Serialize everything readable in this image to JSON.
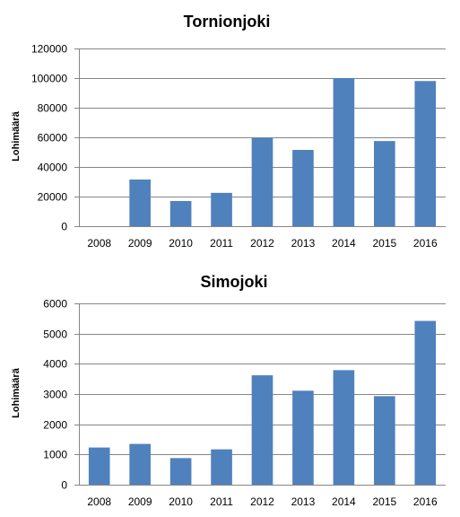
{
  "colors": {
    "bar": "#4f81bd",
    "grid": "#868686"
  },
  "chart_data": [
    {
      "type": "bar",
      "title": "Tornionjoki",
      "xlabel": "",
      "ylabel": "Lohimäärä",
      "categories": [
        "2008",
        "2009",
        "2010",
        "2011",
        "2012",
        "2013",
        "2014",
        "2015",
        "2016"
      ],
      "values": [
        0,
        31500,
        17000,
        22500,
        59500,
        51500,
        100000,
        57500,
        98000
      ],
      "ylim": [
        0,
        120000
      ],
      "yticks": [
        0,
        20000,
        40000,
        60000,
        80000,
        100000,
        120000
      ],
      "grid": true,
      "legend": "none"
    },
    {
      "type": "bar",
      "title": "Simojoki",
      "xlabel": "",
      "ylabel": "Lohimäärä",
      "categories": [
        "2008",
        "2009",
        "2010",
        "2011",
        "2012",
        "2013",
        "2014",
        "2015",
        "2016"
      ],
      "values": [
        1230,
        1350,
        880,
        1170,
        3620,
        3110,
        3790,
        2930,
        5420
      ],
      "ylim": [
        0,
        6000
      ],
      "yticks": [
        0,
        1000,
        2000,
        3000,
        4000,
        5000,
        6000
      ],
      "grid": true,
      "legend": "none"
    }
  ]
}
